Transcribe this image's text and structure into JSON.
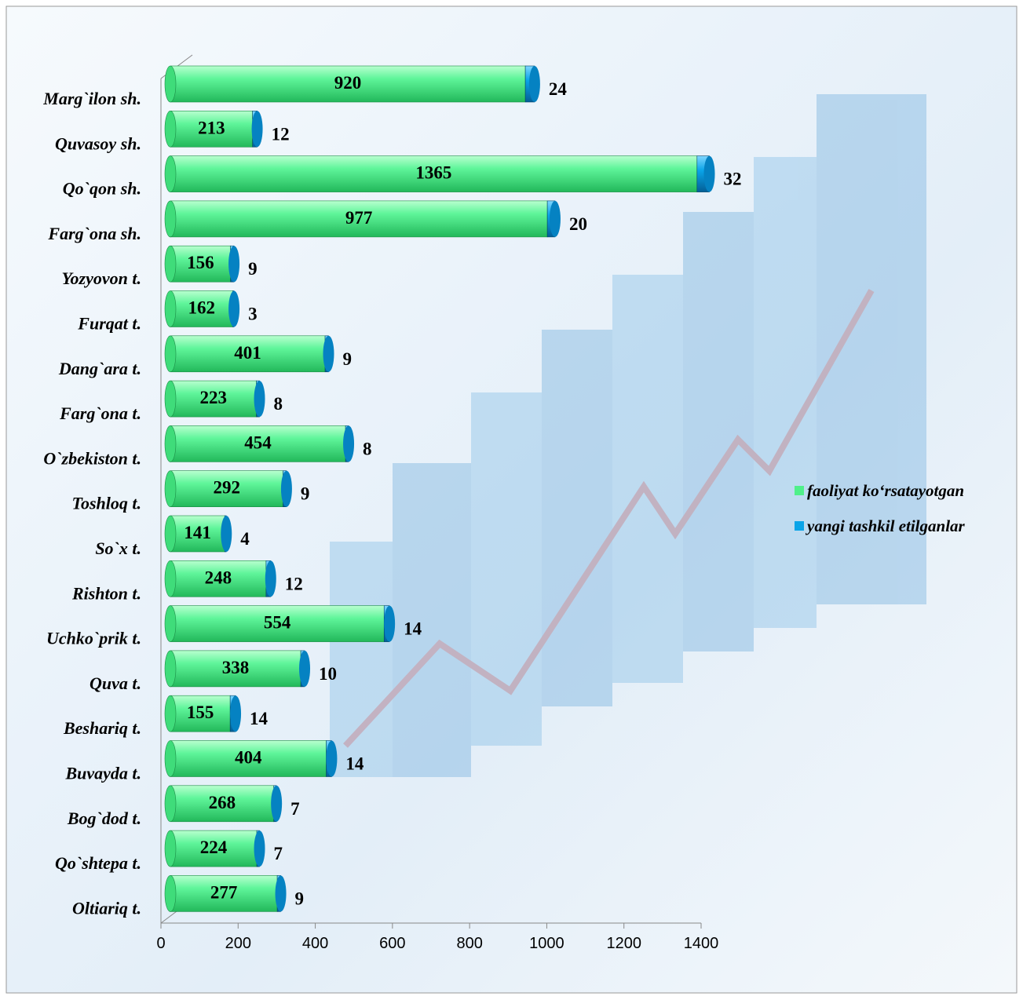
{
  "chart_data": {
    "type": "bar",
    "stacked": true,
    "orientation": "horizontal",
    "categories": [
      "Marg`ilon sh.",
      "Quvasoy sh.",
      "Qo`qon sh.",
      "Farg`ona sh.",
      "Yozyovon t.",
      "Furqat t.",
      "Dang`ara t.",
      "Farg`ona t.",
      "O`zbekiston t.",
      "Toshloq t.",
      "So`x t.",
      "Rishton t.",
      "Uchko`prik t.",
      "Quva t.",
      "Beshariq t.",
      "Buvayda t.",
      "Bog`dod t.",
      "Qo`shtepa t.",
      "Oltiariq t."
    ],
    "series": [
      {
        "name": "faoliyat ko‘rsatayotgan",
        "color": "#4ff08a",
        "values": [
          920,
          213,
          1365,
          977,
          156,
          162,
          401,
          223,
          454,
          292,
          141,
          248,
          554,
          338,
          155,
          404,
          268,
          224,
          277
        ]
      },
      {
        "name": "yangi tashkil etilganlar",
        "color": "#0aa4e8",
        "values": [
          24,
          12,
          32,
          20,
          9,
          3,
          9,
          8,
          8,
          9,
          4,
          12,
          14,
          10,
          14,
          14,
          7,
          7,
          9
        ]
      }
    ],
    "xlim": [
      0,
      1400
    ],
    "xticks": [
      0,
      200,
      400,
      600,
      800,
      1000,
      1200,
      1400
    ],
    "legend": "right"
  }
}
